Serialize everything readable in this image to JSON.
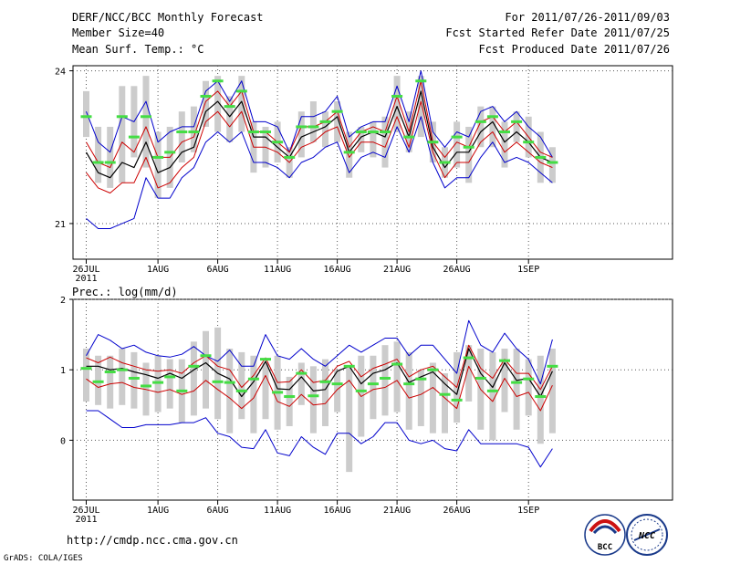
{
  "header": {
    "title": "DERF/NCC/BCC Monthly Forecast",
    "member_size": "Member Size=40",
    "variable": "Mean Surf. Temp.: °C",
    "period": "For 2011/07/26-2011/09/03",
    "started": "Fcst Started Refer Date 2011/07/25",
    "produced": "Fcst Produced Date 2011/07/26"
  },
  "footer": {
    "url": "http://cmdp.ncc.cma.gov.cn",
    "grads": "GrADS: COLA/IGES",
    "logo_bcc": "BCC",
    "logo_ncc": "NCC"
  },
  "colors": {
    "box": "#cccccc",
    "median": "#44dd44",
    "mean": "#000000",
    "inner": "#cc0000",
    "outer": "#0000cc"
  },
  "chart_data": [
    {
      "type": "line",
      "name": "temperature",
      "title": "Mean Surf. Temp.: °C",
      "ylim": [
        20.3,
        24.1
      ],
      "yticks": [
        21,
        24
      ],
      "x_labels": [
        {
          "day": 0,
          "label": "26JUL",
          "sub": "2011"
        },
        {
          "day": 6,
          "label": "1AUG"
        },
        {
          "day": 11,
          "label": "6AUG"
        },
        {
          "day": 16,
          "label": "11AUG"
        },
        {
          "day": 21,
          "label": "16AUG"
        },
        {
          "day": 26,
          "label": "21AUG"
        },
        {
          "day": 31,
          "label": "26AUG"
        },
        {
          "day": 37,
          "label": "1SEP"
        }
      ],
      "days": 40,
      "box_low": [
        22.7,
        21.8,
        21.7,
        21.8,
        22.3,
        22.1,
        21.5,
        21.7,
        22.2,
        22.4,
        22.9,
        22.8,
        22.6,
        22.8,
        22.0,
        22.1,
        22.2,
        21.9,
        22.3,
        22.6,
        22.5,
        22.6,
        21.9,
        22.4,
        22.3,
        22.1,
        22.8,
        22.4,
        22.7,
        22.2,
        21.9,
        22.1,
        21.8,
        22.5,
        22.5,
        22.1,
        22.6,
        22.3,
        21.8,
        21.8
      ],
      "box_high": [
        23.6,
        22.9,
        22.9,
        23.7,
        23.7,
        23.9,
        22.8,
        22.9,
        23.2,
        23.3,
        23.8,
        23.9,
        23.5,
        23.9,
        23.0,
        22.9,
        23.0,
        22.5,
        23.2,
        23.4,
        23.2,
        23.4,
        22.8,
        22.9,
        23.0,
        23.1,
        23.9,
        23.2,
        23.9,
        23.0,
        22.5,
        23.0,
        22.9,
        23.3,
        23.3,
        23.0,
        23.2,
        23.1,
        22.8,
        22.5
      ],
      "median": [
        23.1,
        22.2,
        22.2,
        23.1,
        22.7,
        23.1,
        22.3,
        22.4,
        22.8,
        22.8,
        23.5,
        23.8,
        23.3,
        23.6,
        22.8,
        22.8,
        22.6,
        22.3,
        22.9,
        22.9,
        23.0,
        23.2,
        22.4,
        22.8,
        22.8,
        22.8,
        23.5,
        22.7,
        23.8,
        22.6,
        22.2,
        22.7,
        22.5,
        23.0,
        23.1,
        22.8,
        23.0,
        22.6,
        22.3,
        22.2
      ],
      "mean": [
        22.4,
        22.0,
        21.9,
        22.2,
        22.1,
        22.6,
        22.0,
        22.1,
        22.4,
        22.5,
        23.2,
        23.4,
        23.1,
        23.4,
        22.7,
        22.7,
        22.5,
        22.3,
        22.7,
        22.8,
        22.9,
        23.1,
        22.4,
        22.7,
        22.8,
        22.7,
        23.3,
        22.7,
        23.6,
        22.5,
        22.1,
        22.4,
        22.4,
        22.8,
        23.0,
        22.6,
        22.8,
        22.6,
        22.3,
        22.2
      ],
      "inner_high": [
        22.6,
        22.2,
        22.1,
        22.6,
        22.4,
        22.9,
        22.3,
        22.3,
        22.6,
        22.7,
        23.4,
        23.6,
        23.3,
        23.6,
        22.8,
        22.8,
        22.6,
        22.4,
        22.9,
        22.9,
        23.0,
        23.2,
        22.5,
        22.8,
        22.9,
        22.8,
        23.5,
        22.8,
        23.8,
        22.6,
        22.3,
        22.6,
        22.5,
        23.0,
        23.1,
        22.8,
        23.0,
        22.7,
        22.4,
        22.3
      ],
      "inner_low": [
        22.0,
        21.7,
        21.6,
        21.8,
        21.8,
        22.3,
        21.7,
        21.8,
        22.1,
        22.3,
        23.0,
        23.2,
        22.9,
        23.2,
        22.5,
        22.5,
        22.4,
        22.2,
        22.5,
        22.6,
        22.8,
        22.9,
        22.3,
        22.6,
        22.6,
        22.5,
        23.1,
        22.5,
        23.4,
        22.4,
        21.9,
        22.2,
        22.2,
        22.6,
        22.8,
        22.4,
        22.6,
        22.4,
        22.2,
        22.1
      ],
      "outer_high": [
        23.2,
        22.6,
        22.4,
        23.1,
        23.0,
        23.4,
        22.6,
        22.8,
        22.9,
        22.9,
        23.6,
        23.8,
        23.4,
        23.8,
        23.0,
        23.0,
        22.9,
        22.4,
        23.1,
        23.1,
        23.2,
        23.5,
        22.7,
        22.9,
        23.0,
        23.0,
        23.7,
        23.0,
        24.0,
        22.8,
        22.5,
        22.8,
        22.7,
        23.2,
        23.3,
        23.0,
        23.2,
        22.9,
        22.7,
        22.3
      ],
      "outer_low": [
        21.1,
        20.9,
        20.9,
        21.0,
        21.1,
        21.9,
        21.5,
        21.5,
        21.9,
        22.1,
        22.6,
        22.8,
        22.6,
        22.8,
        22.2,
        22.2,
        22.1,
        21.9,
        22.2,
        22.3,
        22.5,
        22.6,
        22.0,
        22.3,
        22.4,
        22.3,
        22.9,
        22.4,
        23.1,
        22.2,
        21.7,
        21.9,
        21.9,
        22.3,
        22.6,
        22.2,
        22.3,
        22.2,
        22.0,
        21.8
      ]
    },
    {
      "type": "line",
      "name": "precipitation",
      "title": "Prec.: log(mm/d)",
      "ylim": [
        -0.85,
        2.0
      ],
      "yticks": [
        0,
        1,
        2
      ],
      "x_labels": [
        {
          "day": 0,
          "label": "26JUL",
          "sub": "2011"
        },
        {
          "day": 6,
          "label": "1AUG"
        },
        {
          "day": 11,
          "label": "6AUG"
        },
        {
          "day": 16,
          "label": "11AUG"
        },
        {
          "day": 21,
          "label": "16AUG"
        },
        {
          "day": 26,
          "label": "21AUG"
        },
        {
          "day": 31,
          "label": "26AUG"
        },
        {
          "day": 37,
          "label": "1SEP"
        }
      ],
      "days": 40,
      "box_low": [
        0.55,
        0.5,
        0.45,
        0.5,
        0.45,
        0.35,
        0.4,
        0.45,
        0.25,
        0.35,
        0.45,
        0.3,
        0.1,
        0.3,
        0.1,
        0.3,
        0.15,
        0.2,
        0.5,
        0.1,
        0.2,
        0.4,
        -0.45,
        0.05,
        0.3,
        0.35,
        0.4,
        0.15,
        0.2,
        0.1,
        0.1,
        0.25,
        0.55,
        0.15,
        0.0,
        0.4,
        0.15,
        0.35,
        -0.05,
        0.1
      ],
      "box_high": [
        1.3,
        1.2,
        1.2,
        1.3,
        1.25,
        1.1,
        1.2,
        1.15,
        1.15,
        1.4,
        1.55,
        1.6,
        1.3,
        1.25,
        1.2,
        1.1,
        1.2,
        0.9,
        1.1,
        1.05,
        1.15,
        1.0,
        1.05,
        1.2,
        1.2,
        1.35,
        1.4,
        1.25,
        1.0,
        1.1,
        0.95,
        1.25,
        1.35,
        1.3,
        1.25,
        1.3,
        1.3,
        1.15,
        1.2,
        1.3
      ],
      "median": [
        1.02,
        0.83,
        0.97,
        1.0,
        0.88,
        0.77,
        0.82,
        0.9,
        0.7,
        1.05,
        1.2,
        0.83,
        0.82,
        0.7,
        0.87,
        1.15,
        0.68,
        0.62,
        0.95,
        0.63,
        0.83,
        0.8,
        1.05,
        0.7,
        0.8,
        0.88,
        1.08,
        0.8,
        0.87,
        1.0,
        0.65,
        0.57,
        1.17,
        0.88,
        0.7,
        1.13,
        0.82,
        0.87,
        0.62,
        1.05
      ],
      "mean": [
        1.05,
        1.05,
        1.0,
        1.02,
        0.97,
        0.93,
        0.88,
        0.95,
        0.88,
        1.0,
        1.1,
        0.95,
        0.87,
        0.62,
        0.83,
        1.12,
        0.73,
        0.72,
        0.9,
        0.7,
        0.72,
        0.98,
        1.05,
        0.8,
        0.95,
        1.0,
        1.1,
        0.82,
        0.9,
        0.97,
        0.8,
        0.65,
        1.3,
        0.95,
        0.75,
        1.1,
        0.85,
        0.88,
        0.62,
        0.98
      ],
      "inner_high": [
        1.17,
        1.1,
        1.18,
        1.1,
        1.05,
        1.0,
        0.98,
        1.0,
        0.95,
        1.1,
        1.2,
        1.05,
        1.0,
        0.75,
        0.92,
        1.17,
        0.82,
        0.83,
        1.0,
        0.82,
        0.85,
        1.05,
        1.12,
        0.9,
        1.02,
        1.08,
        1.15,
        0.9,
        1.0,
        1.05,
        0.9,
        0.75,
        1.35,
        1.02,
        0.88,
        1.15,
        0.95,
        0.95,
        0.72,
        1.05
      ],
      "inner_low": [
        0.87,
        0.75,
        0.8,
        0.82,
        0.75,
        0.72,
        0.68,
        0.72,
        0.65,
        0.7,
        0.85,
        0.72,
        0.6,
        0.45,
        0.6,
        0.92,
        0.55,
        0.48,
        0.65,
        0.5,
        0.52,
        0.72,
        0.85,
        0.62,
        0.72,
        0.75,
        0.85,
        0.6,
        0.65,
        0.75,
        0.6,
        0.45,
        1.05,
        0.72,
        0.55,
        0.88,
        0.62,
        0.68,
        0.42,
        0.78
      ],
      "outer_high": [
        1.2,
        1.5,
        1.42,
        1.3,
        1.35,
        1.25,
        1.2,
        1.18,
        1.22,
        1.33,
        1.2,
        1.12,
        1.28,
        1.05,
        1.05,
        1.5,
        1.2,
        1.15,
        1.3,
        1.15,
        1.05,
        1.2,
        1.35,
        1.25,
        1.35,
        1.45,
        1.45,
        1.2,
        1.35,
        1.35,
        1.15,
        0.95,
        1.7,
        1.35,
        1.25,
        1.52,
        1.3,
        1.15,
        0.8,
        1.43
      ],
      "outer_low": [
        0.42,
        0.42,
        0.3,
        0.18,
        0.18,
        0.22,
        0.22,
        0.22,
        0.25,
        0.25,
        0.32,
        0.1,
        0.05,
        -0.1,
        -0.12,
        0.15,
        -0.18,
        -0.22,
        0.05,
        -0.1,
        -0.2,
        0.1,
        0.1,
        -0.05,
        0.05,
        0.25,
        0.25,
        0.0,
        -0.05,
        0.0,
        -0.12,
        -0.15,
        0.15,
        -0.05,
        -0.05,
        -0.05,
        -0.05,
        -0.1,
        -0.38,
        -0.12
      ]
    }
  ]
}
